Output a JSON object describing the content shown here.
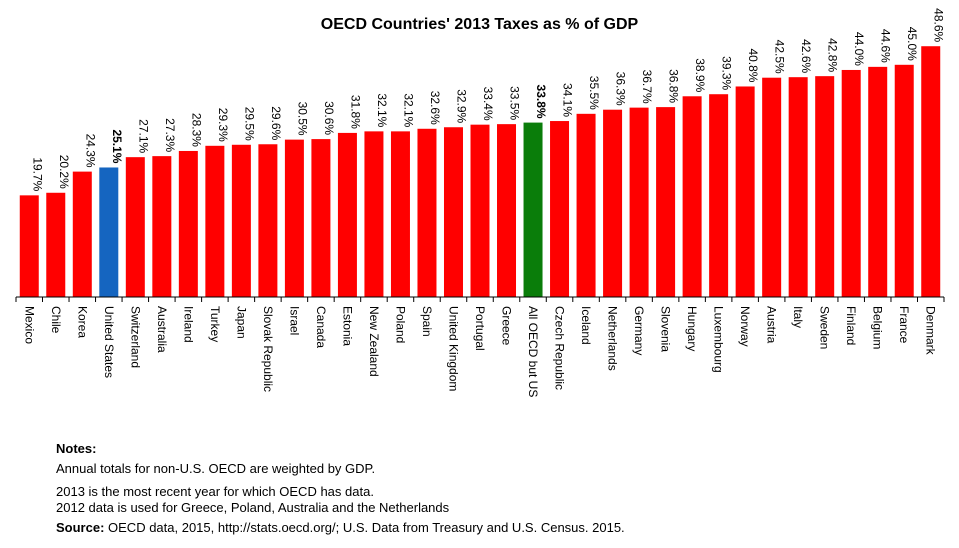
{
  "chart_data": {
    "type": "bar",
    "title": "OECD Countries' 2013 Taxes as % of GDP",
    "xlabel": "",
    "ylabel": "",
    "ylim": [
      0,
      50
    ],
    "grid": false,
    "legend": "none",
    "value_suffix": "%",
    "categories": [
      "Mexico",
      "Chile",
      "Korea",
      "United States",
      "Switzerland",
      "Australia",
      "Ireland",
      "Turkey",
      "Japan",
      "Slovak Republic",
      "Israel",
      "Canada",
      "Estonia",
      "New Zealand",
      "Poland",
      "Spain",
      "United Kingdom",
      "Portugal",
      "Greece",
      "All OECD but US",
      "Czech Republic",
      "Iceland",
      "Netherlands",
      "Germany",
      "Slovenia",
      "Hungary",
      "Luxembourg",
      "Norway",
      "Austria",
      "Italy",
      "Sweden",
      "Finland",
      "Belgium",
      "France",
      "Denmark"
    ],
    "values": [
      19.7,
      20.2,
      24.3,
      25.1,
      27.1,
      27.3,
      28.3,
      29.3,
      29.5,
      29.6,
      30.5,
      30.6,
      31.8,
      32.1,
      32.1,
      32.6,
      32.9,
      33.4,
      33.5,
      33.8,
      34.1,
      35.5,
      36.3,
      36.7,
      36.8,
      38.9,
      39.3,
      40.8,
      42.5,
      42.6,
      42.8,
      44.0,
      44.6,
      45.0,
      48.6
    ],
    "highlight": {
      "United States": "#1565c0",
      "All OECD but US": "#0a7d0a"
    },
    "bold_labels": [
      "United States",
      "All OECD but US"
    ],
    "bar_color": "#ff0000"
  },
  "notes": {
    "heading": "Notes:",
    "lines": [
      "Annual totals for non-U.S. OECD are weighted by GDP.",
      "2013 is the most recent year for which OECD has data.",
      "2012 data is used for Greece, Poland, Australia and the Netherlands"
    ],
    "source_label": "Source:",
    "source_text": " OECD data, 2015, http://stats.oecd.org/; U.S. Data from Treasury and U.S. Census. 2015."
  }
}
